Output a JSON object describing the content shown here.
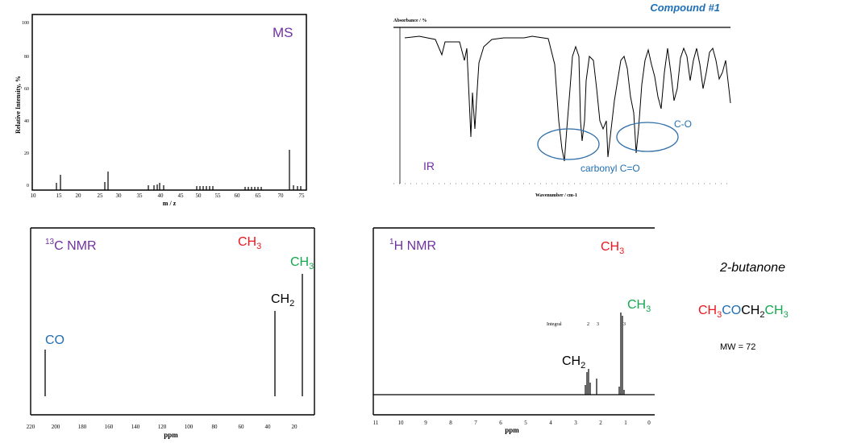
{
  "colors": {
    "blue": "#1f6fb5",
    "purple": "#7030a0",
    "red": "#e8191e",
    "green": "#13a84e",
    "black": "#000000"
  },
  "header": {
    "compound": "Compound #1"
  },
  "ms": {
    "label": "MS",
    "ylabel": "Relative Intensity, %",
    "xlabel": "m / z",
    "yticks": [
      "100",
      "80",
      "60",
      "40",
      "20",
      "0"
    ],
    "xticks": [
      "10",
      "15",
      "20",
      "25",
      "30",
      "35",
      "40",
      "45",
      "50",
      "55",
      "60",
      "65",
      "70",
      "75"
    ]
  },
  "ir": {
    "label": "IR",
    "title": "Absorbance / %",
    "xlabel": "Wavenumber / cm-1",
    "carbonyl": "carbonyl C=O",
    "co": "C-O"
  },
  "c13": {
    "sup": "13",
    "label": "C NMR",
    "ch3_top": "CH",
    "ch3_top_sub": "3",
    "ch3_peak": "CH",
    "ch3_peak_sub": "3",
    "ch2": "CH",
    "ch2_sub": "2",
    "co": "CO",
    "xlabel": "ppm",
    "xticks": [
      "220",
      "200",
      "180",
      "160",
      "140",
      "120",
      "100",
      "80",
      "60",
      "40",
      "20"
    ]
  },
  "h1": {
    "sup": "1",
    "label": "H NMR",
    "ch3_top": "CH",
    "ch3_top_sub": "3",
    "ch3_peak": "CH",
    "ch3_peak_sub": "3",
    "ch2": "CH",
    "ch2_sub": "2",
    "integral": "Integral",
    "int_vals": [
      "2",
      "3",
      "3"
    ],
    "xlabel": "ppm",
    "xticks": [
      "11",
      "10",
      "9",
      "8",
      "7",
      "6",
      "5",
      "4",
      "3",
      "2",
      "1",
      "0"
    ]
  },
  "compound": {
    "name": "2-butanone",
    "f1": "CH",
    "f1sub": "3",
    "f2": "CO",
    "f3": "CH",
    "f3sub": "2",
    "f4": "CH",
    "f4sub": "3",
    "mw": "MW = 72"
  }
}
